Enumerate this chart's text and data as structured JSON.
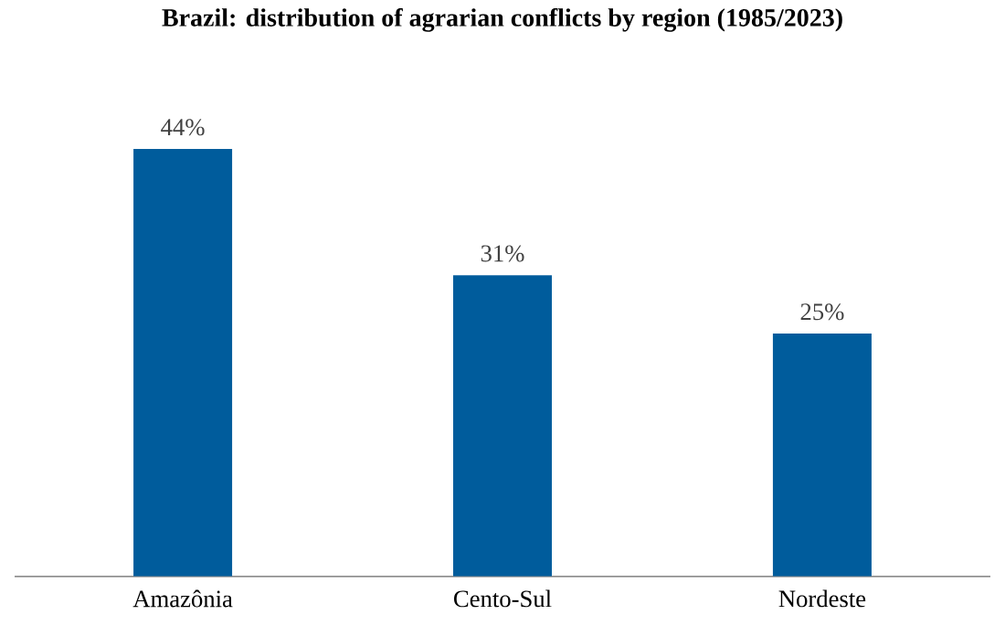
{
  "chart_data": {
    "type": "bar",
    "title": "Brazil: distribution of agrarian conflicts by region (1985/2023)",
    "categories": [
      "Amazônia",
      "Cento-Sul",
      "Nordeste"
    ],
    "values": [
      44,
      31,
      25
    ],
    "value_labels": [
      "44%",
      "31%",
      "25%"
    ],
    "color": "#005c9c",
    "tick_labels": "x"
  }
}
